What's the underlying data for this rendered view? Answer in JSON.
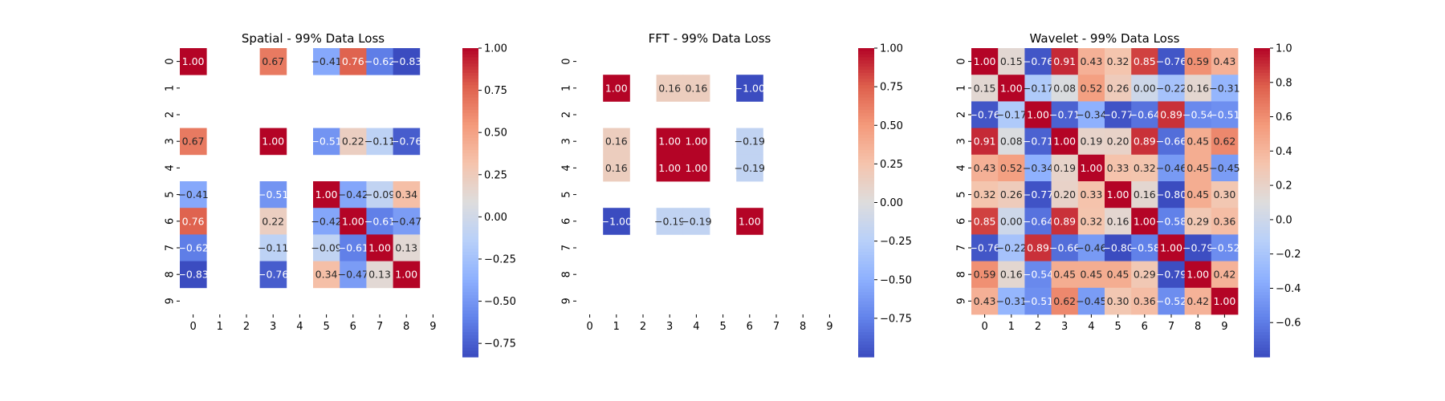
{
  "chart_data": [
    {
      "type": "heatmap",
      "title": "Spatial - 99% Data Loss",
      "x_tick_labels": [
        "0",
        "1",
        "2",
        "3",
        "4",
        "5",
        "6",
        "7",
        "8",
        "9"
      ],
      "y_tick_labels": [
        "0",
        "1",
        "2",
        "3",
        "4",
        "5",
        "6",
        "7",
        "8",
        "9"
      ],
      "colormap": "coolwarm",
      "vmin": -0.83,
      "vmax": 1.0,
      "colorbar_ticks": [
        -0.75,
        -0.5,
        -0.25,
        0.0,
        0.25,
        0.5,
        0.75,
        1.0
      ],
      "colorbar_tick_labels": [
        "−0.75",
        "−0.50",
        "−0.25",
        "0.00",
        "0.25",
        "0.50",
        "0.75",
        "1.00"
      ],
      "values": [
        [
          1.0,
          null,
          null,
          0.67,
          null,
          -0.41,
          0.76,
          -0.62,
          -0.83,
          null
        ],
        [
          null,
          null,
          null,
          null,
          null,
          null,
          null,
          null,
          null,
          null
        ],
        [
          null,
          null,
          null,
          null,
          null,
          null,
          null,
          null,
          null,
          null
        ],
        [
          0.67,
          null,
          null,
          1.0,
          null,
          -0.51,
          0.22,
          -0.11,
          -0.76,
          null
        ],
        [
          null,
          null,
          null,
          null,
          null,
          null,
          null,
          null,
          null,
          null
        ],
        [
          -0.41,
          null,
          null,
          -0.51,
          null,
          1.0,
          -0.42,
          -0.09,
          0.34,
          null
        ],
        [
          0.76,
          null,
          null,
          0.22,
          null,
          -0.42,
          1.0,
          -0.61,
          -0.47,
          null
        ],
        [
          -0.62,
          null,
          null,
          -0.11,
          null,
          -0.09,
          -0.61,
          1.0,
          0.13,
          null
        ],
        [
          -0.83,
          null,
          null,
          -0.76,
          null,
          0.34,
          -0.47,
          0.13,
          1.0,
          null
        ],
        [
          null,
          null,
          null,
          null,
          null,
          null,
          null,
          null,
          null,
          null
        ]
      ]
    },
    {
      "type": "heatmap",
      "title": "FFT - 99% Data Loss",
      "x_tick_labels": [
        "0",
        "1",
        "2",
        "3",
        "4",
        "5",
        "6",
        "7",
        "8",
        "9"
      ],
      "y_tick_labels": [
        "0",
        "1",
        "2",
        "3",
        "4",
        "5",
        "6",
        "7",
        "8",
        "9"
      ],
      "colormap": "coolwarm",
      "vmin": -1.0,
      "vmax": 1.0,
      "colorbar_ticks": [
        -0.75,
        -0.5,
        -0.25,
        0.0,
        0.25,
        0.5,
        0.75,
        1.0
      ],
      "colorbar_tick_labels": [
        "−0.75",
        "−0.50",
        "−0.25",
        "0.00",
        "0.25",
        "0.50",
        "0.75",
        "1.00"
      ],
      "values": [
        [
          null,
          null,
          null,
          null,
          null,
          null,
          null,
          null,
          null,
          null
        ],
        [
          null,
          1.0,
          null,
          0.16,
          0.16,
          null,
          -1.0,
          null,
          null,
          null
        ],
        [
          null,
          null,
          null,
          null,
          null,
          null,
          null,
          null,
          null,
          null
        ],
        [
          null,
          0.16,
          null,
          1.0,
          1.0,
          null,
          -0.19,
          null,
          null,
          null
        ],
        [
          null,
          0.16,
          null,
          1.0,
          1.0,
          null,
          -0.19,
          null,
          null,
          null
        ],
        [
          null,
          null,
          null,
          null,
          null,
          null,
          null,
          null,
          null,
          null
        ],
        [
          null,
          -1.0,
          null,
          -0.19,
          -0.19,
          null,
          1.0,
          null,
          null,
          null
        ],
        [
          null,
          null,
          null,
          null,
          null,
          null,
          null,
          null,
          null,
          null
        ],
        [
          null,
          null,
          null,
          null,
          null,
          null,
          null,
          null,
          null,
          null
        ],
        [
          null,
          null,
          null,
          null,
          null,
          null,
          null,
          null,
          null,
          null
        ]
      ]
    },
    {
      "type": "heatmap",
      "title": "Wavelet - 99% Data Loss",
      "x_tick_labels": [
        "0",
        "1",
        "2",
        "3",
        "4",
        "5",
        "6",
        "7",
        "8",
        "9"
      ],
      "y_tick_labels": [
        "0",
        "1",
        "2",
        "3",
        "4",
        "5",
        "6",
        "7",
        "8",
        "9"
      ],
      "colormap": "coolwarm",
      "vmin": -0.8,
      "vmax": 1.0,
      "colorbar_ticks": [
        -0.6,
        -0.4,
        -0.2,
        0.0,
        0.2,
        0.4,
        0.6,
        0.8,
        1.0
      ],
      "colorbar_tick_labels": [
        "−0.6",
        "−0.4",
        "−0.2",
        "0.0",
        "0.2",
        "0.4",
        "0.6",
        "0.8",
        "1.0"
      ],
      "values": [
        [
          1.0,
          0.15,
          -0.76,
          0.91,
          0.43,
          0.32,
          0.85,
          -0.76,
          0.59,
          0.43
        ],
        [
          0.15,
          1.0,
          -0.17,
          0.08,
          0.52,
          0.26,
          0.0,
          -0.22,
          0.16,
          -0.31
        ],
        [
          -0.76,
          -0.17,
          1.0,
          -0.71,
          -0.34,
          -0.77,
          -0.64,
          0.89,
          -0.54,
          -0.51
        ],
        [
          0.91,
          0.08,
          -0.71,
          1.0,
          0.19,
          0.2,
          0.89,
          -0.66,
          0.45,
          0.62
        ],
        [
          0.43,
          0.52,
          -0.34,
          0.19,
          1.0,
          0.33,
          0.32,
          -0.46,
          0.45,
          -0.45
        ],
        [
          0.32,
          0.26,
          -0.77,
          0.2,
          0.33,
          1.0,
          0.16,
          -0.8,
          0.45,
          0.3
        ],
        [
          0.85,
          0.0,
          -0.64,
          0.89,
          0.32,
          0.16,
          1.0,
          -0.58,
          0.29,
          0.36
        ],
        [
          -0.76,
          -0.22,
          0.89,
          -0.66,
          -0.46,
          -0.8,
          -0.58,
          1.0,
          -0.79,
          -0.52
        ],
        [
          0.59,
          0.16,
          -0.54,
          0.45,
          0.45,
          0.45,
          0.29,
          -0.79,
          1.0,
          0.42
        ],
        [
          0.43,
          -0.31,
          -0.51,
          0.62,
          -0.45,
          0.3,
          0.36,
          -0.52,
          0.42,
          1.0
        ]
      ]
    }
  ]
}
